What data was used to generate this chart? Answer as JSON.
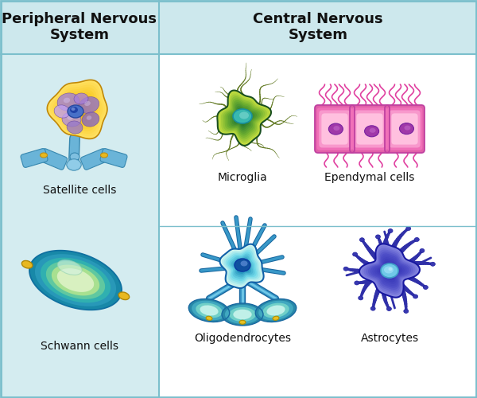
{
  "bg_light_blue": "#cde8ed",
  "bg_pns": "#d4ecf0",
  "bg_cns": "#ffffff",
  "header_bg": "#cde8ed",
  "border_color": "#7bbfcc",
  "divider_color": "#7bbfcc",
  "text_color": "#111111",
  "label_fontsize": 10,
  "header_fontsize": 13,
  "col_labels": [
    "Peripheral Nervous\nSystem",
    "Central Nervous\nSystem"
  ],
  "cell_labels": {
    "satellite": "Satellite cells",
    "schwann": "Schwann cells",
    "microglia": "Microglia",
    "ependymal": "Ependymal cells",
    "oligodendrocytes": "Oligodendrocytes",
    "astrocytes": "Astrocytes"
  }
}
